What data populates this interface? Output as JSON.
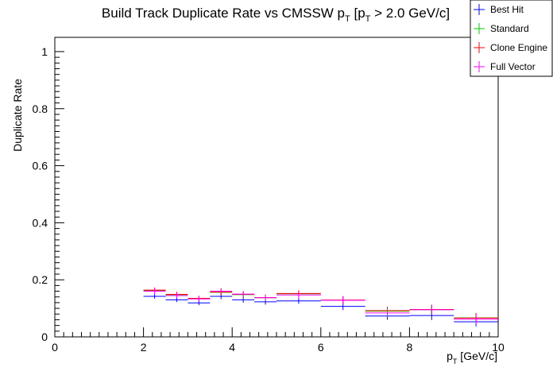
{
  "chart_data": {
    "type": "scatter",
    "title_main": "Build Track Duplicate Rate vs CMSSW p",
    "title_sub": "T",
    "title_mid": " [p",
    "title_sub2": "T",
    "title_tail": " > 2.0 GeV/c]",
    "xlabel_main": "p",
    "xlabel_sub": "T",
    "xlabel_tail": " [GeV/c]",
    "ylabel": "Duplicate Rate",
    "xlim": [
      0,
      10
    ],
    "ylim": [
      0,
      1.05
    ],
    "x_ticks": [
      "0",
      "2",
      "4",
      "6",
      "8",
      "10"
    ],
    "y_ticks": [
      "0",
      "0.2",
      "0.4",
      "0.6",
      "0.8",
      "1"
    ],
    "grid": false,
    "legend_position": "top-right",
    "bins": [
      [
        2.0,
        2.5
      ],
      [
        2.5,
        3.0
      ],
      [
        3.0,
        3.5
      ],
      [
        3.5,
        4.0
      ],
      [
        4.0,
        4.5
      ],
      [
        4.5,
        5.0
      ],
      [
        5.0,
        6.0
      ],
      [
        6.0,
        7.0
      ],
      [
        7.0,
        8.0
      ],
      [
        8.0,
        9.0
      ],
      [
        9.0,
        10.0
      ]
    ],
    "series": [
      {
        "name": "Best Hit",
        "color": "#0000ff",
        "values": [
          0.142,
          0.13,
          0.119,
          0.142,
          0.13,
          0.123,
          0.126,
          0.107,
          0.073,
          0.075,
          0.053
        ],
        "errors": [
          0.008,
          0.008,
          0.008,
          0.01,
          0.01,
          0.01,
          0.01,
          0.013,
          0.013,
          0.016,
          0.016
        ]
      },
      {
        "name": "Standard",
        "color": "#00cc00",
        "values": [
          0.162,
          0.148,
          0.134,
          0.156,
          0.148,
          0.137,
          0.151,
          0.128,
          0.09,
          0.095,
          0.067
        ],
        "errors": [
          0.009,
          0.009,
          0.009,
          0.011,
          0.011,
          0.011,
          0.011,
          0.014,
          0.014,
          0.017,
          0.017
        ]
      },
      {
        "name": "Clone Engine",
        "color": "#ff0000",
        "values": [
          0.164,
          0.149,
          0.135,
          0.157,
          0.149,
          0.138,
          0.152,
          0.129,
          0.092,
          0.096,
          0.066
        ],
        "errors": [
          0.009,
          0.009,
          0.009,
          0.011,
          0.011,
          0.011,
          0.011,
          0.014,
          0.014,
          0.017,
          0.017
        ]
      },
      {
        "name": "Full Vector",
        "color": "#ff00ff",
        "values": [
          0.16,
          0.145,
          0.133,
          0.16,
          0.15,
          0.137,
          0.147,
          0.128,
          0.084,
          0.095,
          0.062
        ],
        "errors": [
          0.009,
          0.009,
          0.009,
          0.011,
          0.011,
          0.011,
          0.011,
          0.014,
          0.014,
          0.017,
          0.017
        ]
      }
    ]
  }
}
